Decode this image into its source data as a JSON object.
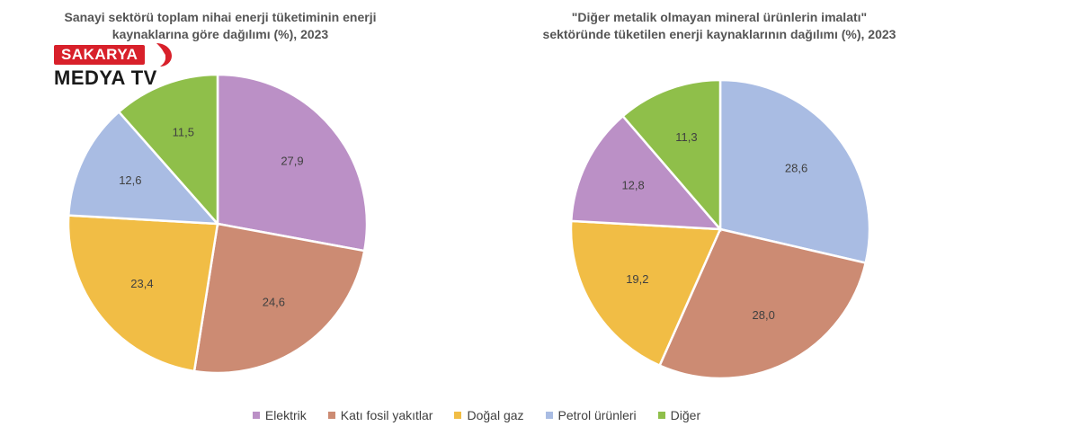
{
  "logo": {
    "line1": "SAKARYA",
    "line2": "MEDYA TV"
  },
  "colors": {
    "Elektrik": "#bb90c6",
    "Katı fosil yakıtlar": "#cc8b73",
    "Doğal gaz": "#f1bd45",
    "Petrol ürünleri": "#a9bce3",
    "Diğer": "#8fbf4a"
  },
  "legend": [
    "Elektrik",
    "Katı fosil yakıtlar",
    "Doğal gaz",
    "Petrol ürünleri",
    "Diğer"
  ],
  "chart_data": [
    {
      "type": "pie",
      "title_line1": "Sanayi sektörü toplam nihai enerji tüketiminin enerji",
      "title_line2": "kaynaklarına göre dağılımı (%), 2023",
      "slices": [
        {
          "name": "Elektrik",
          "value": 27.9,
          "label": "27,9"
        },
        {
          "name": "Katı fosil yakıtlar",
          "value": 24.6,
          "label": "24,6"
        },
        {
          "name": "Doğal gaz",
          "value": 23.4,
          "label": "23,4"
        },
        {
          "name": "Petrol ürünleri",
          "value": 12.6,
          "label": "12,6"
        },
        {
          "name": "Diğer",
          "value": 11.5,
          "label": "11,5"
        }
      ]
    },
    {
      "type": "pie",
      "title_line1": "\"Diğer metalik olmayan mineral ürünlerin imalatı\"",
      "title_line2": "sektöründe tüketilen enerji kaynaklarının dağılımı (%), 2023",
      "slices": [
        {
          "name": "Petrol ürünleri",
          "value": 28.6,
          "label": "28,6"
        },
        {
          "name": "Katı fosil yakıtlar",
          "value": 28.0,
          "label": "28,0"
        },
        {
          "name": "Doğal gaz",
          "value": 19.2,
          "label": "19,2"
        },
        {
          "name": "Elektrik",
          "value": 12.8,
          "label": "12,8"
        },
        {
          "name": "Diğer",
          "value": 11.3,
          "label": "11,3"
        }
      ]
    }
  ]
}
